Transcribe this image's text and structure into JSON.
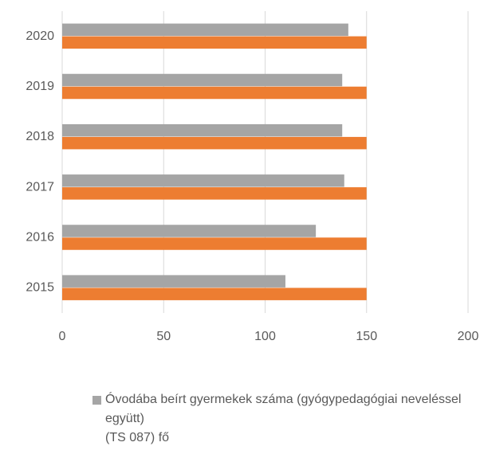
{
  "chart_data": {
    "type": "bar",
    "orientation": "horizontal",
    "categories": [
      "2015",
      "2016",
      "2017",
      "2018",
      "2019",
      "2020"
    ],
    "series": [
      {
        "name": "Óvodába beírt gyermekek száma (gyógypedagógiai neveléssel együtt)\n(TS 087) fő",
        "color": "#a5a5a5",
        "values": [
          110,
          125,
          139,
          138,
          138,
          141
        ]
      },
      {
        "color": "#ed7d31",
        "values": [
          150,
          150,
          150,
          150,
          150,
          150
        ]
      }
    ],
    "xlim": [
      0,
      200
    ],
    "xticks": [
      0,
      50,
      100,
      150,
      200
    ],
    "grid": true
  }
}
